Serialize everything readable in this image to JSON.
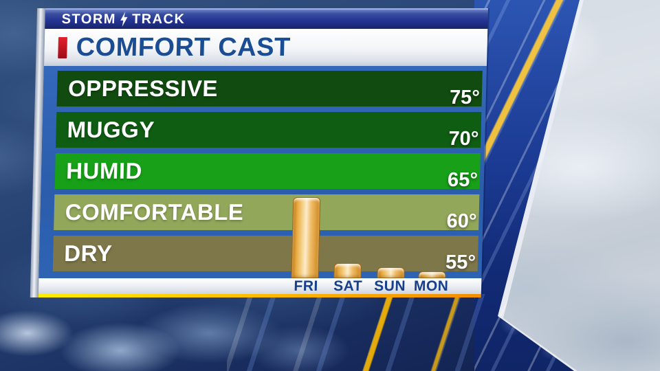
{
  "header": {
    "brand_left": "STORM",
    "brand_right": "TRACK",
    "bolt_icon": "lightning-bolt",
    "title": "COMFORT CAST"
  },
  "accent": {
    "red_accent": "#c8102e",
    "title_blue": "#1b4d95",
    "panel_blue": "#2e63b4",
    "day_label_blue": "#173f8c",
    "bar_orange": "#e8a93f",
    "bottom_line_yellow": "#ffee00",
    "bottom_line_orange": "#f28e00"
  },
  "chart_data": {
    "type": "bar",
    "title": "COMFORT CAST",
    "categories": [
      "FRI",
      "SAT",
      "SUN",
      "MON"
    ],
    "values": [
      64,
      56,
      55.5,
      55
    ],
    "value_note": "degrees estimated from band scale; axis labeled every 5 degrees",
    "ylim": [
      55,
      80
    ],
    "yticks": [
      "75°",
      "70°",
      "65°",
      "60°",
      "55°"
    ],
    "grid": false,
    "legend_position": "none",
    "bands": [
      {
        "label": "OPPRESSIVE",
        "min": 75,
        "tick": "75°",
        "color": "#114b10"
      },
      {
        "label": "MUGGY",
        "min": 70,
        "tick": "70°",
        "color": "#0f5c13"
      },
      {
        "label": "HUMID",
        "min": 65,
        "tick": "65°",
        "color": "#17a018"
      },
      {
        "label": "COMFORTABLE",
        "min": 60,
        "tick": "60°",
        "color": "#93a75a"
      },
      {
        "label": "DRY",
        "min": 55,
        "tick": "55°",
        "color": "#7e774a"
      }
    ]
  }
}
